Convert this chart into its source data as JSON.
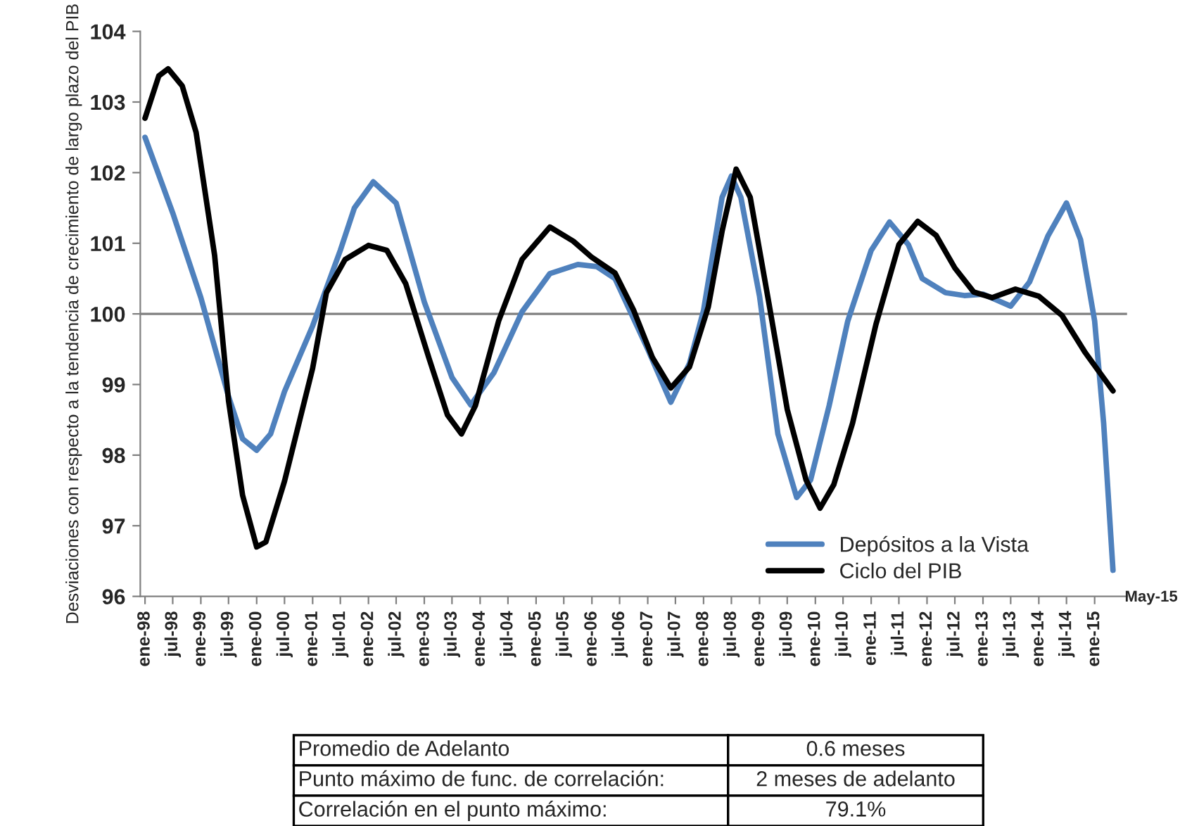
{
  "chart_data": {
    "type": "line",
    "ylabel": "Desviaciones con respecto a la tendencia de crecimiento de largo plazo del PIB",
    "series": [
      {
        "name": "Depósitos a la Vista",
        "color": "#4f81bd",
        "x": [
          "1998-01",
          "1998-07",
          "1999-01",
          "1999-07",
          "1999-10",
          "2000-01",
          "2000-04",
          "2000-07",
          "2001-01",
          "2001-07",
          "2001-10",
          "2002-02",
          "2002-07",
          "2003-01",
          "2003-07",
          "2003-11",
          "2004-04",
          "2004-10",
          "2005-04",
          "2005-10",
          "2006-02",
          "2006-06",
          "2007-01",
          "2007-06",
          "2007-10",
          "2008-01",
          "2008-05",
          "2008-07",
          "2008-09",
          "2009-01",
          "2009-05",
          "2009-09",
          "2009-12",
          "2010-04",
          "2010-08",
          "2011-01",
          "2011-05",
          "2011-09",
          "2011-12",
          "2012-05",
          "2012-09",
          "2013-01",
          "2013-07",
          "2013-11",
          "2014-03",
          "2014-07",
          "2014-10",
          "2015-01",
          "2015-03",
          "2015-05"
        ],
        "values": [
          102.5,
          101.43,
          100.23,
          98.83,
          98.23,
          98.07,
          98.3,
          98.9,
          99.83,
          100.9,
          101.5,
          101.87,
          101.57,
          100.17,
          99.1,
          98.71,
          99.17,
          100.03,
          100.57,
          100.7,
          100.67,
          100.5,
          99.5,
          98.75,
          99.3,
          100.05,
          101.65,
          101.95,
          101.65,
          100.25,
          98.3,
          97.4,
          97.65,
          98.7,
          99.9,
          100.9,
          101.3,
          100.98,
          100.5,
          100.3,
          100.26,
          100.28,
          100.11,
          100.45,
          101.1,
          101.57,
          101.05,
          99.9,
          98.45,
          96.37
        ]
      },
      {
        "name": "Ciclo del PIB",
        "color": "#000000",
        "x": [
          "1998-01",
          "1998-04",
          "1998-06",
          "1998-09",
          "1998-12",
          "1999-04",
          "1999-07",
          "1999-10",
          "2000-01",
          "2000-03",
          "2000-07",
          "2001-01",
          "2001-04",
          "2001-08",
          "2002-01",
          "2002-05",
          "2002-09",
          "2003-02",
          "2003-06",
          "2003-09",
          "2003-12",
          "2004-05",
          "2004-10",
          "2005-04",
          "2005-09",
          "2006-01",
          "2006-06",
          "2006-10",
          "2007-02",
          "2007-06",
          "2007-10",
          "2008-02",
          "2008-05",
          "2008-08",
          "2008-11",
          "2009-03",
          "2009-07",
          "2009-11",
          "2010-02",
          "2010-05",
          "2010-09",
          "2011-02",
          "2011-07",
          "2011-11",
          "2012-03",
          "2012-07",
          "2012-11",
          "2013-03",
          "2013-08",
          "2014-01",
          "2014-06",
          "2014-11",
          "2015-05"
        ],
        "values": [
          102.77,
          103.37,
          103.47,
          103.23,
          102.57,
          100.83,
          98.77,
          97.43,
          96.7,
          96.77,
          97.63,
          99.23,
          100.3,
          100.77,
          100.97,
          100.9,
          100.43,
          99.37,
          98.57,
          98.3,
          98.7,
          99.9,
          100.77,
          101.23,
          101.03,
          100.8,
          100.58,
          100.05,
          99.38,
          98.95,
          99.25,
          100.1,
          101.17,
          102.05,
          101.65,
          100.18,
          98.65,
          97.65,
          97.25,
          97.58,
          98.45,
          99.85,
          100.98,
          101.31,
          101.11,
          100.65,
          100.31,
          100.23,
          100.35,
          100.25,
          99.98,
          99.45,
          98.91
        ]
      }
    ],
    "ylim": [
      96,
      104
    ],
    "yticks": [
      96,
      97,
      98,
      99,
      100,
      101,
      102,
      103,
      104
    ],
    "xlim": [
      "1997-12",
      "2015-08"
    ],
    "xticks": [
      {
        "value": "1998-01",
        "label": "ene-98"
      },
      {
        "value": "1998-07",
        "label": "jul-98"
      },
      {
        "value": "1999-01",
        "label": "ene-99"
      },
      {
        "value": "1999-07",
        "label": "jul-99"
      },
      {
        "value": "2000-01",
        "label": "ene-00"
      },
      {
        "value": "2000-07",
        "label": "jul-00"
      },
      {
        "value": "2001-01",
        "label": "ene-01"
      },
      {
        "value": "2001-07",
        "label": "jul-01"
      },
      {
        "value": "2002-01",
        "label": "ene-02"
      },
      {
        "value": "2002-07",
        "label": "jul-02"
      },
      {
        "value": "2003-01",
        "label": "ene-03"
      },
      {
        "value": "2003-07",
        "label": "jul-03"
      },
      {
        "value": "2004-01",
        "label": "ene-04"
      },
      {
        "value": "2004-07",
        "label": "jul-04"
      },
      {
        "value": "2005-01",
        "label": "ene-05"
      },
      {
        "value": "2005-07",
        "label": "jul-05"
      },
      {
        "value": "2006-01",
        "label": "ene-06"
      },
      {
        "value": "2006-07",
        "label": "jul-06"
      },
      {
        "value": "2007-01",
        "label": "ene-07"
      },
      {
        "value": "2007-07",
        "label": "jul-07"
      },
      {
        "value": "2008-01",
        "label": "ene-08"
      },
      {
        "value": "2008-07",
        "label": "jul-08"
      },
      {
        "value": "2009-01",
        "label": "ene-09"
      },
      {
        "value": "2009-07",
        "label": "jul-09"
      },
      {
        "value": "2010-01",
        "label": "ene-10"
      },
      {
        "value": "2010-07",
        "label": "jul-10"
      },
      {
        "value": "2011-01",
        "label": "ene-11"
      },
      {
        "value": "2011-07",
        "label": "jul-11"
      },
      {
        "value": "2012-01",
        "label": "ene-12"
      },
      {
        "value": "2012-07",
        "label": "jul-12"
      },
      {
        "value": "2013-01",
        "label": "ene-13"
      },
      {
        "value": "2013-07",
        "label": "jul-13"
      },
      {
        "value": "2014-01",
        "label": "ene-14"
      },
      {
        "value": "2014-07",
        "label": "jul-14"
      },
      {
        "value": "2015-01",
        "label": "ene-15"
      }
    ],
    "ref_lines": [
      {
        "axis": "y",
        "value": 100,
        "label": null,
        "color": "#808080",
        "line_style": "solid"
      }
    ],
    "annotations": [
      {
        "text": "May-15",
        "x": "2015-05",
        "y": 96.37
      },
      "Promedio de Adelanto",
      "0.6 meses",
      "Punto máximo de func. de correlación:",
      "2 meses de adelanto",
      "Correlación en el punto máximo:",
      "79.1%"
    ],
    "legend": "bottom right",
    "grid": false,
    "marker": "none",
    "line_style": "solid"
  }
}
